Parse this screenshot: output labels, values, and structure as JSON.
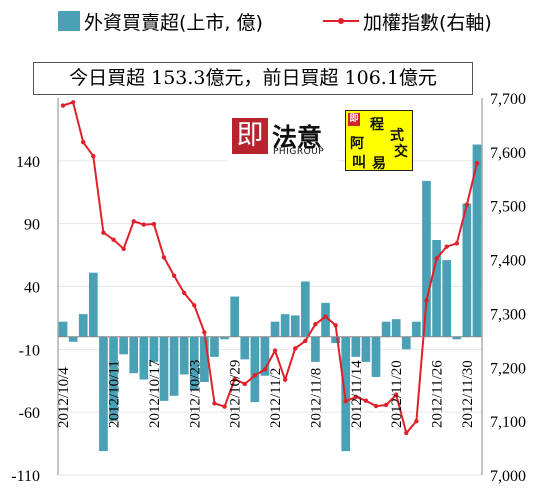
{
  "legend": {
    "bar_label": "外資買賣超(上市, 億)",
    "line_label": "加權指數(右軸)"
  },
  "summary": {
    "text": "今日買超 153.3億元，前日買超 106.1億元"
  },
  "logos": {
    "phigroup_name": "法意",
    "phigroup_sub": "PHIGROUP",
    "phigroup_seal": "即",
    "trade_chars": [
      "程",
      "式",
      "阿",
      "交",
      "叫",
      "易"
    ],
    "trade_corner": "即"
  },
  "colors": {
    "bar": "#4aa1b6",
    "line": "#e0202a",
    "grid": "#e6e6e6"
  },
  "chart_data": {
    "type": "bar",
    "x_tick_labels": [
      "2012/10/4",
      "2012/10/11",
      "2012/10/17",
      "2012/10/23",
      "2012/10/29",
      "2012/11/2",
      "2012/11/8",
      "2012/11/14",
      "2012/11/20",
      "2012/11/26",
      "2012/11/30"
    ],
    "x_tick_indices": [
      0,
      5,
      9,
      13,
      17,
      21,
      25,
      29,
      33,
      37,
      40
    ],
    "y_left": {
      "ticks": [
        140,
        90,
        40,
        -10,
        -60,
        -110
      ],
      "range": [
        -110,
        190
      ]
    },
    "y_right": {
      "ticks": [
        "7,700",
        "7,600",
        "7,500",
        "7,400",
        "7,300",
        "7,200",
        "7,100",
        "7,000"
      ],
      "range": [
        7000,
        7700
      ]
    },
    "series": [
      {
        "name": "外資買賣超(上市, 億)",
        "axis": "left",
        "values": [
          12,
          -4,
          18,
          51,
          -91,
          -67,
          -14,
          -29,
          -34,
          -20,
          -51,
          -47,
          -30,
          -42,
          -36,
          -16,
          -2,
          32,
          -18,
          -52,
          -31,
          12,
          18,
          17,
          44,
          -20,
          27,
          -5,
          -91,
          -16,
          -20,
          -32,
          12,
          14,
          -10,
          12,
          124,
          77,
          61,
          -2,
          106,
          153
        ]
      },
      {
        "name": "加權指數(右軸)",
        "axis": "right",
        "values": [
          7686,
          7692,
          7618,
          7592,
          7450,
          7437,
          7420,
          7471,
          7465,
          7466,
          7404,
          7370,
          7338,
          7315,
          7265,
          7133,
          7127,
          7178,
          7169,
          7185,
          7196,
          7231,
          7177,
          7235,
          7249,
          7280,
          7294,
          7278,
          7137,
          7145,
          7138,
          7128,
          7130,
          7149,
          7078,
          7100,
          7324,
          7402,
          7424,
          7430,
          7502,
          7579
        ]
      }
    ]
  }
}
